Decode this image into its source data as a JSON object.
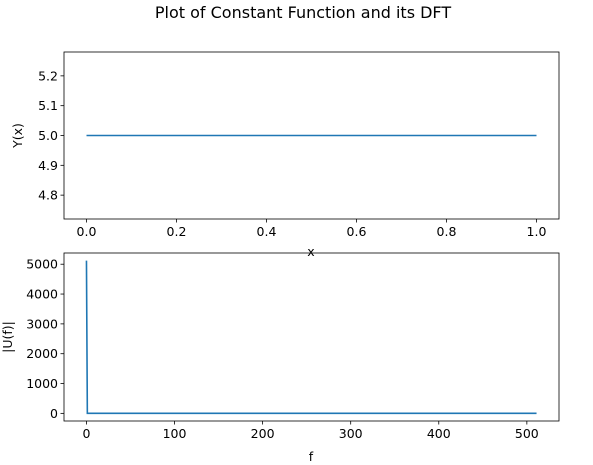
{
  "figure": {
    "title": "Plot of Constant Function and its DFT"
  },
  "chart_data": [
    {
      "type": "line",
      "xlabel": "x",
      "ylabel": "Y(x)",
      "xlim": [
        -0.05,
        1.05
      ],
      "ylim": [
        4.72,
        5.28
      ],
      "xticks": [
        0.0,
        0.2,
        0.4,
        0.6,
        0.8,
        1.0
      ],
      "xtick_labels": [
        "0.0",
        "0.2",
        "0.4",
        "0.6",
        "0.8",
        "1.0"
      ],
      "yticks": [
        4.8,
        4.9,
        5.0,
        5.1,
        5.2
      ],
      "ytick_labels": [
        "4.8",
        "4.9",
        "5.0",
        "5.1",
        "5.2"
      ],
      "series": [
        {
          "x": [
            0.0,
            1.0
          ],
          "y": [
            5.0,
            5.0
          ],
          "color": "#1f77b4"
        }
      ]
    },
    {
      "type": "line",
      "xlabel": "f",
      "ylabel": "|U(f)|",
      "xlim": [
        -25.5,
        536.5
      ],
      "ylim": [
        -256,
        5376
      ],
      "xticks": [
        0,
        100,
        200,
        300,
        400,
        500
      ],
      "xtick_labels": [
        "0",
        "100",
        "200",
        "300",
        "400",
        "500"
      ],
      "yticks": [
        0,
        1000,
        2000,
        3000,
        4000,
        5000
      ],
      "ytick_labels": [
        "0",
        "1000",
        "2000",
        "3000",
        "4000",
        "5000"
      ],
      "series": [
        {
          "x": [
            0,
            1,
            511
          ],
          "y": [
            5120,
            0,
            0
          ],
          "color": "#1f77b4"
        }
      ]
    }
  ]
}
